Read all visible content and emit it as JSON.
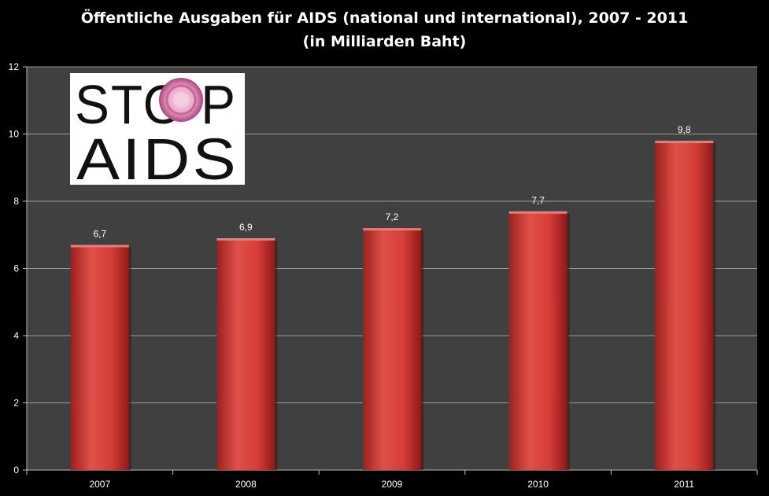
{
  "chart_data": {
    "type": "bar",
    "title": "Öffentliche Ausgaben für AIDS (national und international), 2007 - 2011",
    "subtitle": "(in Milliarden Baht)",
    "categories": [
      "2007",
      "2008",
      "2009",
      "2010",
      "2011"
    ],
    "values": [
      6.7,
      6.9,
      7.2,
      7.7,
      9.8
    ],
    "value_labels": [
      "6,7",
      "6,9",
      "7,2",
      "7,7",
      "9,8"
    ],
    "yticks": [
      0,
      2,
      4,
      6,
      8,
      10,
      12
    ],
    "ylim": [
      0,
      12
    ],
    "grid": true,
    "bar_color": "#d9403c",
    "plot_background": "#404040",
    "logo": {
      "line1": "STOP",
      "line2": "AIDS"
    }
  }
}
